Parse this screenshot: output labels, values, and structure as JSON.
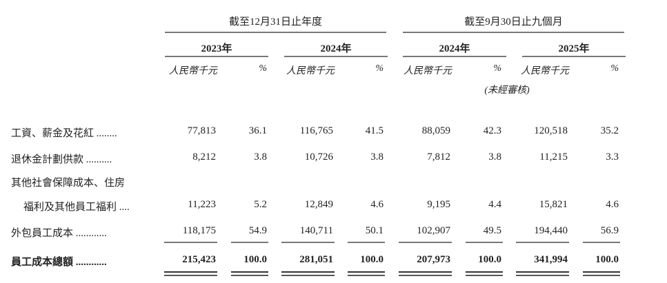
{
  "headers": {
    "group1": "截至12月31日止年度",
    "group2": "截至9月30日止九個月",
    "years": [
      "2023年",
      "2024年",
      "2024年",
      "2025年"
    ],
    "unit_amount": "人民幣千元",
    "unit_pct": "%",
    "unaudited": "(未經審核)"
  },
  "rows": [
    {
      "label": "工資、薪金及花紅 ........",
      "values": [
        "77,813",
        "36.1",
        "116,765",
        "41.5",
        "88,059",
        "42.3",
        "120,518",
        "35.2"
      ]
    },
    {
      "label": "退休金計劃供款 ..........",
      "values": [
        "8,212",
        "3.8",
        "10,726",
        "3.8",
        "7,812",
        "3.8",
        "11,215",
        "3.3"
      ]
    },
    {
      "label": "其他社會保障成本、住房",
      "label2": "福利及其他員工福利 ....",
      "values": [
        "11,223",
        "5.2",
        "12,849",
        "4.6",
        "9,195",
        "4.4",
        "15,821",
        "4.6"
      ]
    },
    {
      "label": "外包員工成本 ............",
      "values": [
        "118,175",
        "54.9",
        "140,711",
        "50.1",
        "102,907",
        "49.5",
        "194,440",
        "56.9"
      ]
    }
  ],
  "total": {
    "label": "員工成本總額 ............",
    "values": [
      "215,423",
      "100.0",
      "281,051",
      "100.0",
      "207,973",
      "100.0",
      "341,994",
      "100.0"
    ]
  }
}
